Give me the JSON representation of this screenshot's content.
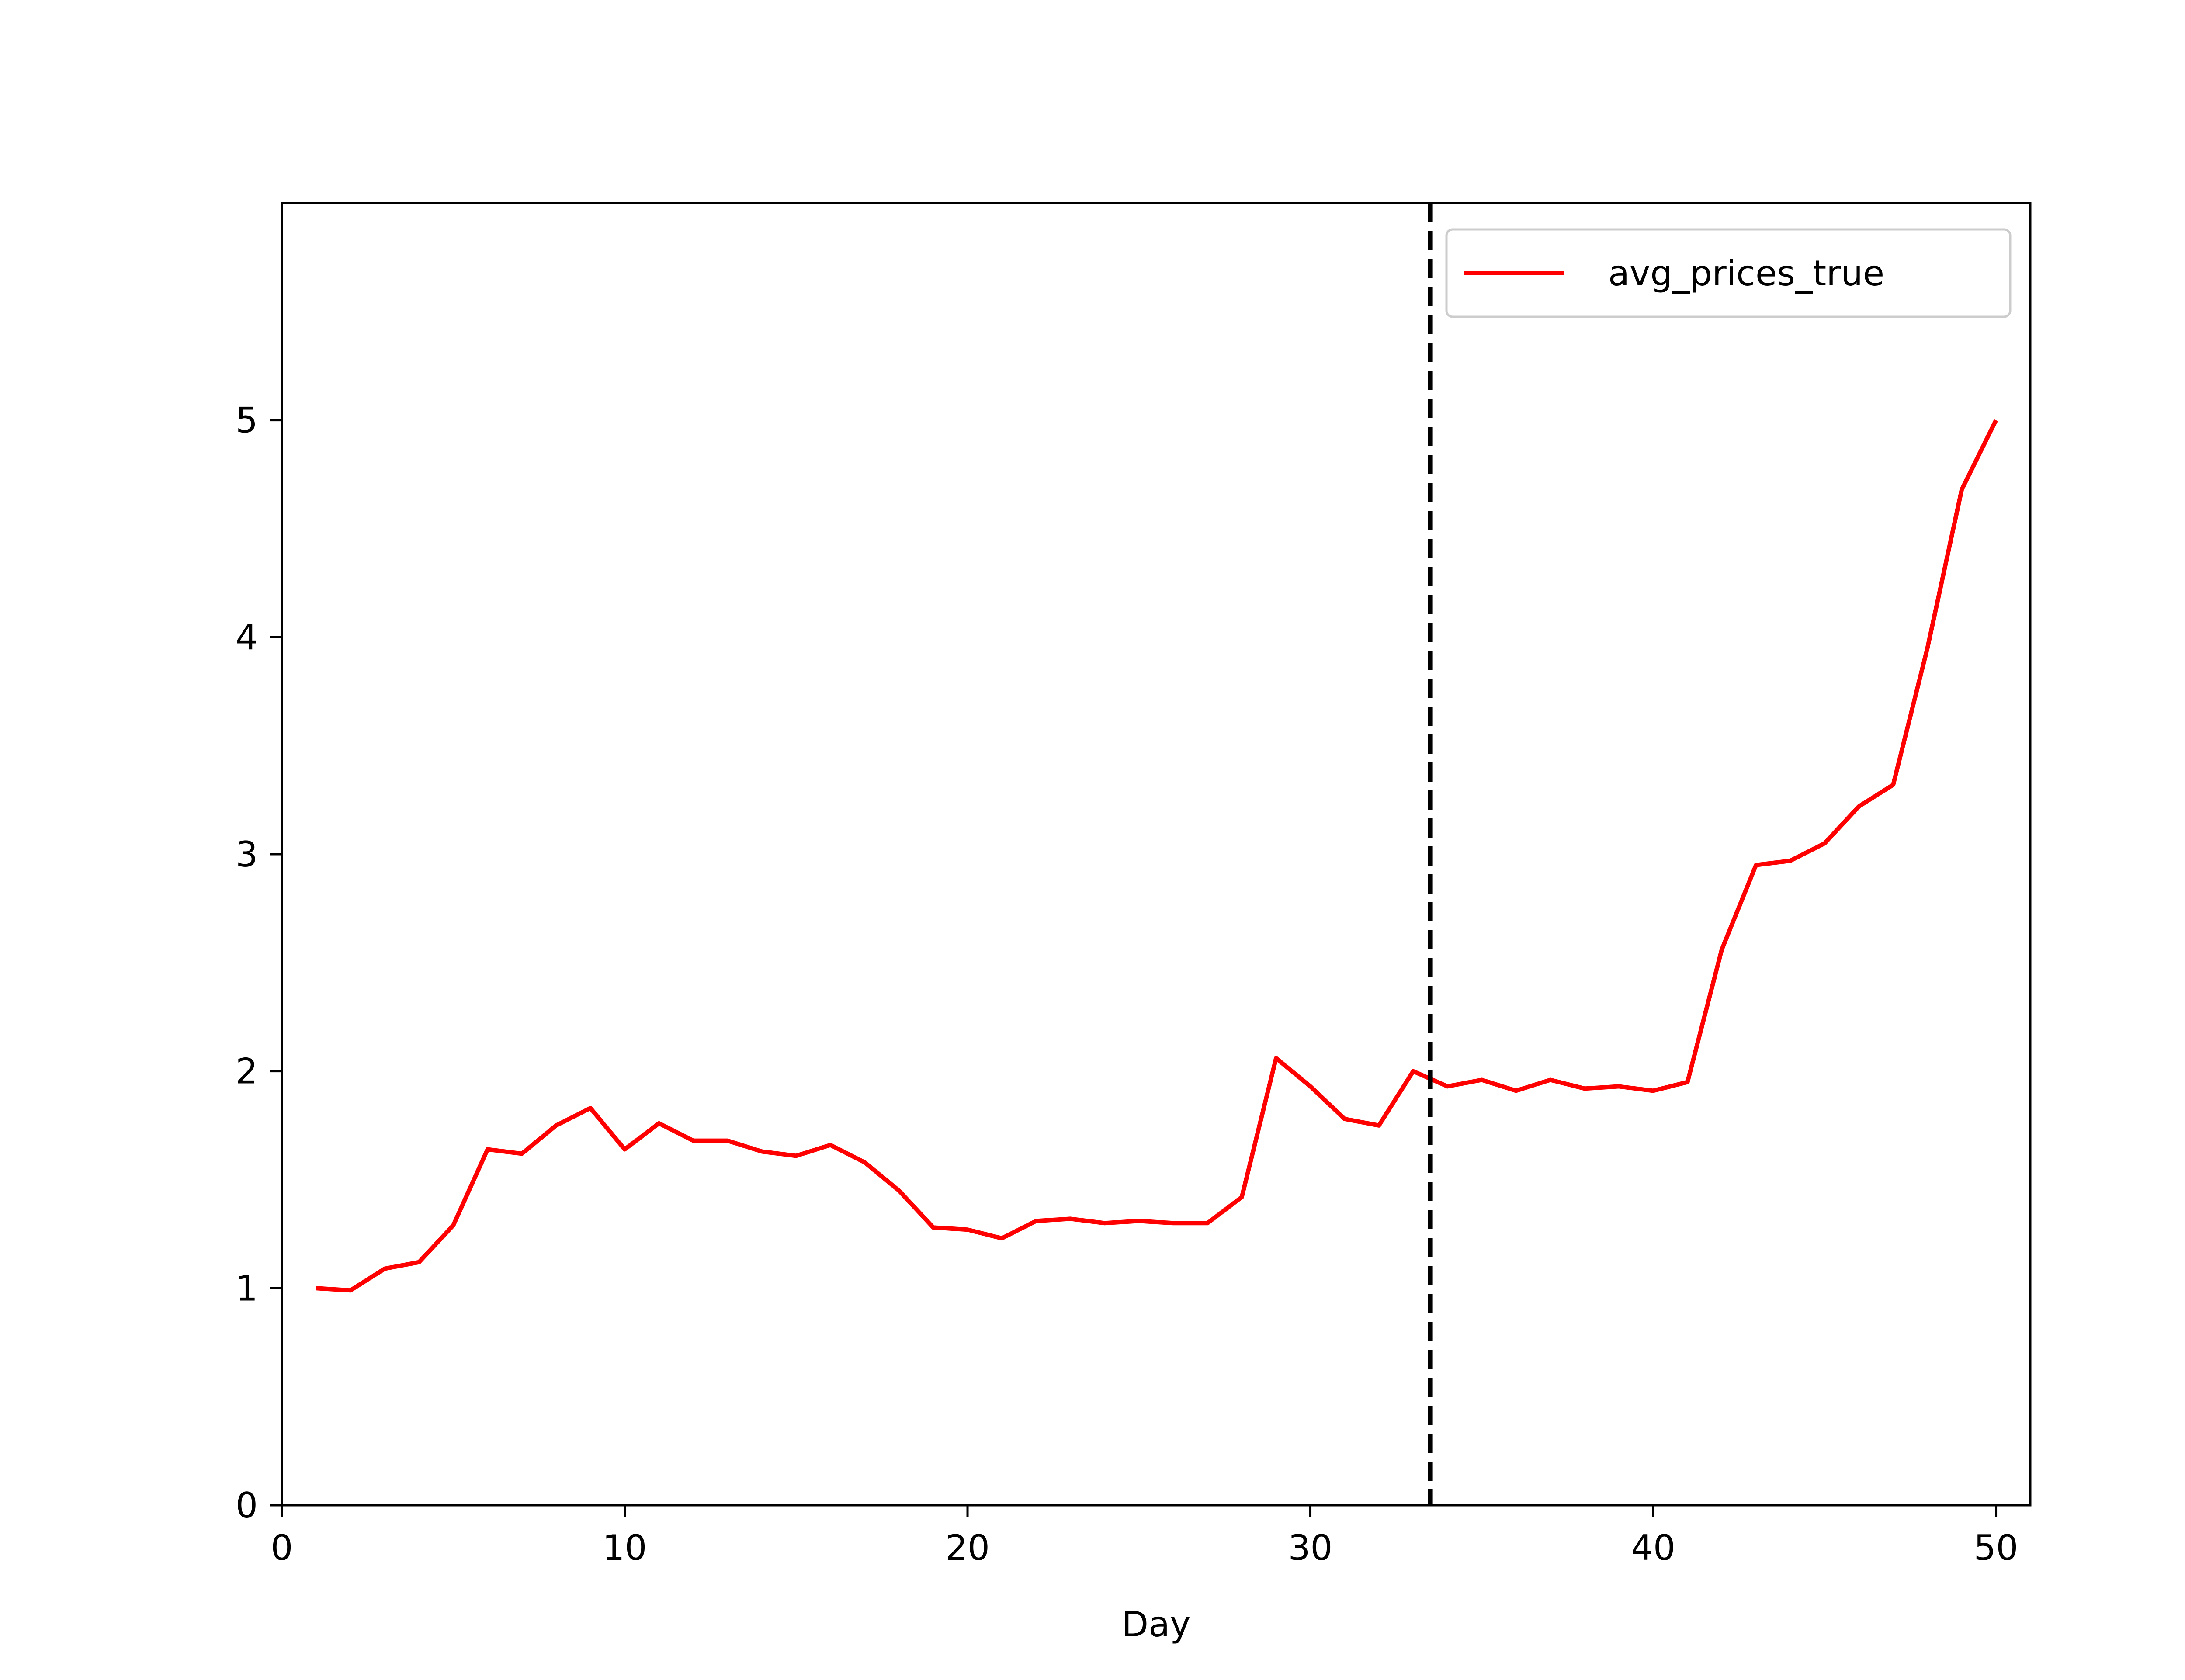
{
  "chart_data": {
    "type": "line",
    "title": "",
    "xlabel": "Day",
    "ylabel": "",
    "xlim": [
      0,
      51
    ],
    "ylim": [
      0,
      6
    ],
    "x_ticks": [
      0,
      10,
      20,
      30,
      40,
      50
    ],
    "y_ticks": [
      0,
      1,
      2,
      3,
      4,
      5
    ],
    "grid": false,
    "legend_position": "top-right",
    "vline": {
      "x": 33.5,
      "style": "dashed",
      "color": "#000000"
    },
    "series": [
      {
        "name": "avg_prices_true",
        "color": "#ff0000",
        "x": [
          1,
          2,
          3,
          4,
          5,
          6,
          7,
          8,
          9,
          10,
          11,
          12,
          13,
          14,
          15,
          16,
          17,
          18,
          19,
          20,
          21,
          22,
          23,
          24,
          25,
          26,
          27,
          28,
          29,
          30,
          31,
          32,
          33,
          34,
          35,
          36,
          37,
          38,
          39,
          40,
          41,
          42,
          43,
          44,
          45,
          46,
          47,
          48,
          49,
          50
        ],
        "y": [
          1.0,
          0.99,
          1.09,
          1.12,
          1.29,
          1.64,
          1.62,
          1.75,
          1.83,
          1.64,
          1.76,
          1.68,
          1.68,
          1.63,
          1.61,
          1.66,
          1.58,
          1.45,
          1.28,
          1.27,
          1.23,
          1.31,
          1.32,
          1.3,
          1.31,
          1.3,
          1.3,
          1.42,
          2.06,
          1.93,
          1.78,
          1.75,
          2.0,
          1.93,
          1.96,
          1.91,
          1.96,
          1.92,
          1.93,
          1.91,
          1.95,
          2.56,
          2.95,
          2.97,
          3.05,
          3.22,
          3.32,
          3.95,
          4.68,
          5.0
        ]
      }
    ]
  }
}
